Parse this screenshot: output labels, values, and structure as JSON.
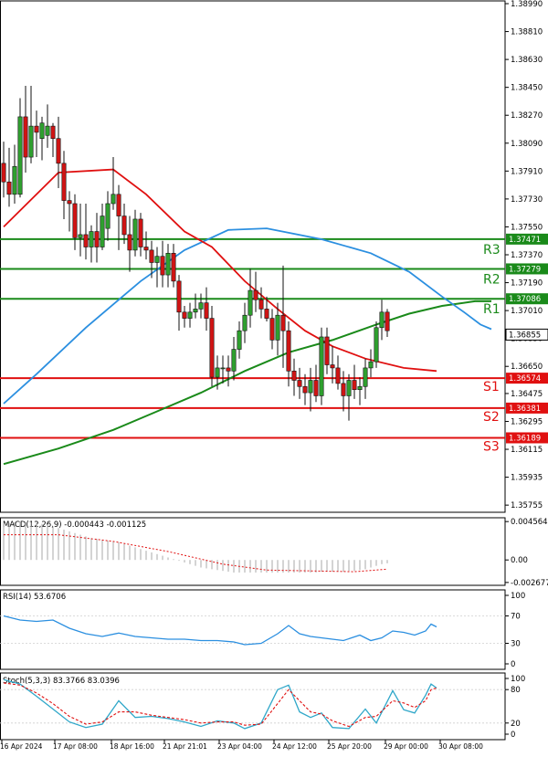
{
  "chart_data": {
    "type": "candlestick",
    "main": {
      "ylim": [
        1.3575,
        1.3899
      ],
      "y_ticks": [
        "1.38990",
        "1.38810",
        "1.38630",
        "1.38450",
        "1.38270",
        "1.38090",
        "1.37910",
        "1.37730",
        "1.37550",
        "1.37370",
        "1.37190",
        "1.37010",
        "1.36830",
        "1.36650",
        "1.36475",
        "1.36295",
        "1.36115",
        "1.35935",
        "1.35755"
      ],
      "current_price": "1.36855",
      "levels": [
        {
          "key": "R3",
          "price": 1.37471,
          "price_label": "1.37471",
          "color": "#1a8a1a"
        },
        {
          "key": "R2",
          "price": 1.37279,
          "price_label": "1.37279",
          "color": "#1a8a1a"
        },
        {
          "key": "R1",
          "price": 1.37086,
          "price_label": "1.37086",
          "color": "#1a8a1a"
        },
        {
          "key": "S1",
          "price": 1.36574,
          "price_label": "1.36574",
          "color": "#e01010"
        },
        {
          "key": "S2",
          "price": 1.36381,
          "price_label": "1.36381",
          "color": "#e01010"
        },
        {
          "key": "S3",
          "price": 1.36189,
          "price_label": "1.36189",
          "color": "#e01010"
        }
      ],
      "candles": [
        [
          1.3796,
          1.381,
          1.3774,
          1.3784
        ],
        [
          1.3784,
          1.3806,
          1.3768,
          1.3776
        ],
        [
          1.3776,
          1.3808,
          1.377,
          1.3794
        ],
        [
          1.3776,
          1.3838,
          1.3774,
          1.3826
        ],
        [
          1.3826,
          1.3846,
          1.379,
          1.38
        ],
        [
          1.38,
          1.3846,
          1.3796,
          1.382
        ],
        [
          1.382,
          1.383,
          1.38,
          1.3816
        ],
        [
          1.3812,
          1.3826,
          1.3798,
          1.3822
        ],
        [
          1.3814,
          1.3834,
          1.3806,
          1.382
        ],
        [
          1.382,
          1.3822,
          1.38,
          1.3812
        ],
        [
          1.3812,
          1.3826,
          1.378,
          1.3796
        ],
        [
          1.3796,
          1.3804,
          1.376,
          1.3772
        ],
        [
          1.3772,
          1.3778,
          1.3752,
          1.377
        ],
        [
          1.377,
          1.3776,
          1.374,
          1.3748
        ],
        [
          1.3748,
          1.377,
          1.3736,
          1.375
        ],
        [
          1.375,
          1.377,
          1.3734,
          1.3742
        ],
        [
          1.3742,
          1.3756,
          1.3732,
          1.3752
        ],
        [
          1.3752,
          1.3764,
          1.3732,
          1.3742
        ],
        [
          1.3742,
          1.377,
          1.374,
          1.3762
        ],
        [
          1.3754,
          1.3778,
          1.3746,
          1.377
        ],
        [
          1.377,
          1.38,
          1.3766,
          1.3776
        ],
        [
          1.3776,
          1.3782,
          1.374,
          1.3762
        ],
        [
          1.3762,
          1.377,
          1.3744,
          1.375
        ],
        [
          1.375,
          1.3762,
          1.3726,
          1.374
        ],
        [
          1.374,
          1.3766,
          1.3736,
          1.376
        ],
        [
          1.376,
          1.3764,
          1.3736,
          1.3742
        ],
        [
          1.3742,
          1.3752,
          1.3734,
          1.374
        ],
        [
          1.374,
          1.3746,
          1.3722,
          1.3732
        ],
        [
          1.3732,
          1.3742,
          1.3716,
          1.3736
        ],
        [
          1.3736,
          1.3746,
          1.3716,
          1.3724
        ],
        [
          1.3724,
          1.3744,
          1.3716,
          1.3738
        ],
        [
          1.3738,
          1.3744,
          1.3716,
          1.372
        ],
        [
          1.372,
          1.3724,
          1.3688,
          1.37
        ],
        [
          1.37,
          1.3704,
          1.369,
          1.3696
        ],
        [
          1.3696,
          1.3706,
          1.369,
          1.37
        ],
        [
          1.37,
          1.3712,
          1.3696,
          1.3702
        ],
        [
          1.3702,
          1.3712,
          1.3696,
          1.3706
        ],
        [
          1.3706,
          1.3716,
          1.3688,
          1.3696
        ],
        [
          1.3696,
          1.3704,
          1.3652,
          1.3658
        ],
        [
          1.3658,
          1.3672,
          1.365,
          1.3664
        ],
        [
          1.3664,
          1.3672,
          1.3654,
          1.3664
        ],
        [
          1.3664,
          1.3672,
          1.3652,
          1.3662
        ],
        [
          1.3662,
          1.3684,
          1.3656,
          1.3676
        ],
        [
          1.3676,
          1.3694,
          1.367,
          1.3688
        ],
        [
          1.3688,
          1.3706,
          1.368,
          1.3698
        ],
        [
          1.3698,
          1.3728,
          1.369,
          1.3714
        ],
        [
          1.3714,
          1.3726,
          1.37,
          1.3708
        ],
        [
          1.3708,
          1.3716,
          1.3696,
          1.3702
        ],
        [
          1.3702,
          1.371,
          1.3694,
          1.3696
        ],
        [
          1.3696,
          1.3702,
          1.3676,
          1.3682
        ],
        [
          1.3682,
          1.3706,
          1.3672,
          1.3698
        ],
        [
          1.3698,
          1.373,
          1.3664,
          1.3688
        ],
        [
          1.3688,
          1.3694,
          1.3652,
          1.3662
        ],
        [
          1.3662,
          1.367,
          1.3646,
          1.3656
        ],
        [
          1.3656,
          1.3664,
          1.3644,
          1.3652
        ],
        [
          1.3652,
          1.366,
          1.364,
          1.3648
        ],
        [
          1.3648,
          1.3664,
          1.3636,
          1.3656
        ],
        [
          1.3656,
          1.3666,
          1.3642,
          1.3646
        ],
        [
          1.3646,
          1.369,
          1.364,
          1.3684
        ],
        [
          1.3684,
          1.369,
          1.366,
          1.3666
        ],
        [
          1.3666,
          1.3678,
          1.3654,
          1.3664
        ],
        [
          1.3664,
          1.3672,
          1.365,
          1.3654
        ],
        [
          1.3654,
          1.3662,
          1.3636,
          1.3646
        ],
        [
          1.3646,
          1.366,
          1.363,
          1.3656
        ],
        [
          1.3656,
          1.3666,
          1.3644,
          1.365
        ],
        [
          1.365,
          1.3658,
          1.364,
          1.3652
        ],
        [
          1.3652,
          1.367,
          1.3644,
          1.3664
        ],
        [
          1.3664,
          1.3676,
          1.3658,
          1.3668
        ],
        [
          1.3668,
          1.3694,
          1.3664,
          1.369
        ],
        [
          1.369,
          1.3708,
          1.3682,
          1.37
        ],
        [
          1.37,
          1.3702,
          1.3684,
          1.3688
        ]
      ],
      "ma_red": [
        [
          0,
          1.3755
        ],
        [
          10,
          1.379
        ],
        [
          20,
          1.3792
        ],
        [
          26,
          1.3776
        ],
        [
          33,
          1.3752
        ],
        [
          38,
          1.3742
        ],
        [
          44,
          1.372
        ],
        [
          50,
          1.3702
        ],
        [
          55,
          1.3688
        ],
        [
          60,
          1.3678
        ],
        [
          66,
          1.367
        ],
        [
          73,
          1.3664
        ],
        [
          79,
          1.3662
        ]
      ],
      "ma_blue": [
        [
          0,
          1.3641
        ],
        [
          6,
          1.366
        ],
        [
          15,
          1.369
        ],
        [
          25,
          1.372
        ],
        [
          33,
          1.374
        ],
        [
          41,
          1.3753
        ],
        [
          48,
          1.3754
        ],
        [
          58,
          1.3747
        ],
        [
          67,
          1.3738
        ],
        [
          74,
          1.3726
        ],
        [
          80,
          1.371
        ],
        [
          84,
          1.37
        ],
        [
          87,
          1.3692
        ],
        [
          89,
          1.3689
        ]
      ],
      "ma_green": [
        [
          0,
          1.3602
        ],
        [
          10,
          1.3612
        ],
        [
          20,
          1.3624
        ],
        [
          28,
          1.3636
        ],
        [
          36,
          1.3648
        ],
        [
          44,
          1.3662
        ],
        [
          52,
          1.3674
        ],
        [
          60,
          1.3682
        ],
        [
          68,
          1.3692
        ],
        [
          74,
          1.3699
        ],
        [
          80,
          1.3704
        ],
        [
          86,
          1.3707
        ],
        [
          89,
          1.3707
        ]
      ]
    },
    "macd": {
      "label": "MACD(12,26,9) -0.000443 -0.001125",
      "y_ticks": [
        "0.004564",
        "0.00",
        "-0.002677"
      ],
      "ylim": [
        -0.0028,
        0.0048
      ],
      "hist": [
        0.0044,
        0.0044,
        0.0045,
        0.0045,
        0.0045,
        0.0045,
        0.0044,
        0.0043,
        0.0042,
        0.004,
        0.0038,
        0.0036,
        0.0034,
        0.0032,
        0.003,
        0.0028,
        0.0026,
        0.0025,
        0.0024,
        0.0023,
        0.0022,
        0.0021,
        0.0019,
        0.0017,
        0.0015,
        0.0013,
        0.0011,
        0.0009,
        0.0007,
        0.0005,
        0.0003,
        0.0001,
        -0.0001,
        -0.0003,
        -0.0005,
        -0.0007,
        -0.0009,
        -0.001,
        -0.0011,
        -0.0012,
        -0.0013,
        -0.0014,
        -0.0015,
        -0.0015,
        -0.0015,
        -0.0015,
        -0.0015,
        -0.0015,
        -0.0015,
        -0.0015,
        -0.0015,
        -0.0015,
        -0.0015,
        -0.0015,
        -0.0015,
        -0.0015,
        -0.0015,
        -0.0015,
        -0.0014,
        -0.0014,
        -0.0014,
        -0.0014,
        -0.0014,
        -0.0013,
        -0.0013,
        -0.0012,
        -0.0011,
        -0.0009,
        -0.0007,
        -0.0005,
        -0.0004
      ],
      "signal": [
        [
          0,
          0.003
        ],
        [
          10,
          0.003
        ],
        [
          20,
          0.0022
        ],
        [
          30,
          0.001
        ],
        [
          40,
          -0.0005
        ],
        [
          48,
          -0.0012
        ],
        [
          56,
          -0.0013
        ],
        [
          64,
          -0.0014
        ],
        [
          70,
          -0.0011
        ]
      ]
    },
    "rsi": {
      "label": "RSI(14) 53.6706",
      "y_ticks": [
        "100",
        "70",
        "30",
        "0"
      ],
      "ylim": [
        0,
        100
      ],
      "values": [
        [
          0,
          70
        ],
        [
          3,
          64
        ],
        [
          6,
          62
        ],
        [
          9,
          64
        ],
        [
          12,
          52
        ],
        [
          15,
          44
        ],
        [
          18,
          40
        ],
        [
          21,
          45
        ],
        [
          24,
          40
        ],
        [
          27,
          38
        ],
        [
          30,
          36
        ],
        [
          33,
          36
        ],
        [
          36,
          34
        ],
        [
          39,
          34
        ],
        [
          42,
          32
        ],
        [
          44,
          28
        ],
        [
          47,
          30
        ],
        [
          50,
          44
        ],
        [
          52,
          56
        ],
        [
          54,
          44
        ],
        [
          56,
          40
        ],
        [
          58,
          38
        ],
        [
          60,
          36
        ],
        [
          62,
          34
        ],
        [
          65,
          42
        ],
        [
          67,
          34
        ],
        [
          69,
          38
        ],
        [
          71,
          48
        ],
        [
          73,
          46
        ],
        [
          75,
          42
        ],
        [
          77,
          48
        ],
        [
          78,
          58
        ],
        [
          79,
          54
        ]
      ]
    },
    "stoch": {
      "label": "Stoch(5,3,3) 83.3766 83.0396",
      "y_ticks": [
        "100",
        "80",
        "20",
        "0"
      ],
      "ylim": [
        0,
        100
      ],
      "k": [
        [
          0,
          98
        ],
        [
          3,
          90
        ],
        [
          6,
          68
        ],
        [
          9,
          45
        ],
        [
          12,
          22
        ],
        [
          15,
          12
        ],
        [
          18,
          18
        ],
        [
          21,
          60
        ],
        [
          24,
          30
        ],
        [
          27,
          32
        ],
        [
          30,
          28
        ],
        [
          33,
          22
        ],
        [
          36,
          14
        ],
        [
          39,
          24
        ],
        [
          42,
          20
        ],
        [
          44,
          10
        ],
        [
          47,
          20
        ],
        [
          50,
          80
        ],
        [
          52,
          88
        ],
        [
          54,
          40
        ],
        [
          56,
          30
        ],
        [
          58,
          38
        ],
        [
          60,
          12
        ],
        [
          63,
          10
        ],
        [
          66,
          45
        ],
        [
          68,
          20
        ],
        [
          71,
          78
        ],
        [
          73,
          44
        ],
        [
          75,
          38
        ],
        [
          77,
          70
        ],
        [
          78,
          90
        ],
        [
          79,
          83
        ]
      ],
      "d": [
        [
          0,
          92
        ],
        [
          3,
          88
        ],
        [
          6,
          74
        ],
        [
          9,
          55
        ],
        [
          12,
          32
        ],
        [
          15,
          18
        ],
        [
          18,
          22
        ],
        [
          21,
          40
        ],
        [
          24,
          40
        ],
        [
          27,
          34
        ],
        [
          30,
          30
        ],
        [
          33,
          26
        ],
        [
          36,
          20
        ],
        [
          39,
          22
        ],
        [
          42,
          22
        ],
        [
          44,
          16
        ],
        [
          47,
          18
        ],
        [
          50,
          55
        ],
        [
          52,
          80
        ],
        [
          54,
          60
        ],
        [
          56,
          40
        ],
        [
          58,
          36
        ],
        [
          60,
          24
        ],
        [
          63,
          14
        ],
        [
          66,
          30
        ],
        [
          68,
          32
        ],
        [
          71,
          60
        ],
        [
          73,
          56
        ],
        [
          75,
          48
        ],
        [
          77,
          60
        ],
        [
          78,
          80
        ],
        [
          79,
          83
        ]
      ]
    },
    "x_labels": [
      "16 Apr 2024",
      "17 Apr 08:00",
      "18 Apr 16:00",
      "21 Apr 21:01",
      "23 Apr 04:00",
      "24 Apr 12:00",
      "25 Apr 20:00",
      "29 Apr 00:00",
      "30 Apr 08:00"
    ]
  }
}
